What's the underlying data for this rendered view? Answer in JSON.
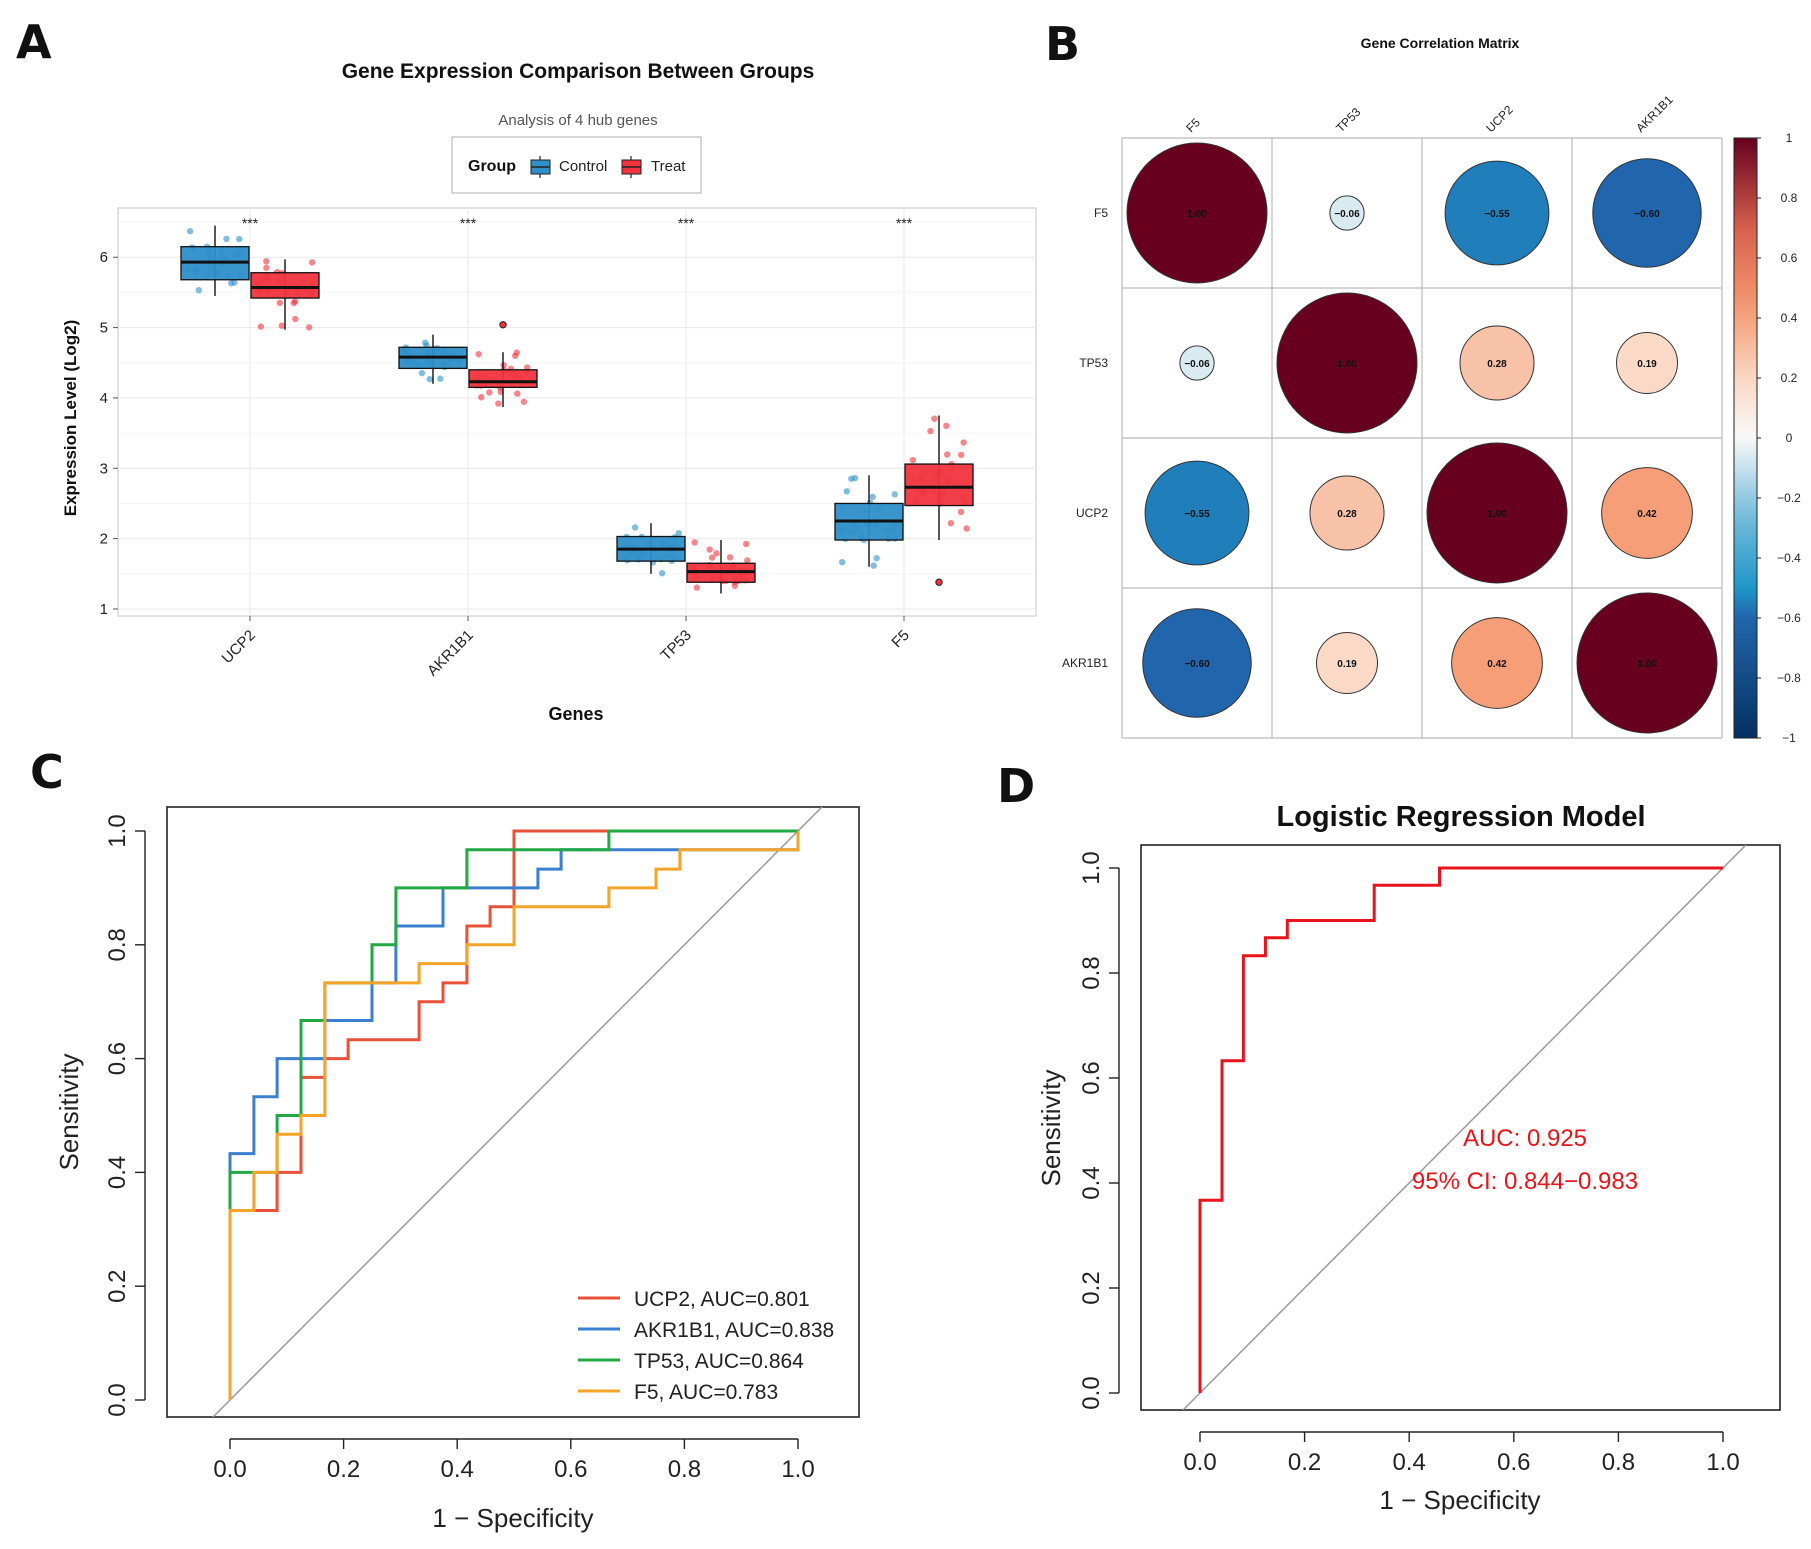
{
  "panels": {
    "A": {
      "letter": "A",
      "chart_data": {
        "type": "box",
        "title": "Gene Expression Comparison Between Groups",
        "subtitle": "Analysis of 4 hub genes",
        "xlabel": "Genes",
        "ylabel": "Expression Level (Log2)",
        "ylim": [
          0.9,
          6.7
        ],
        "yticks": [
          1,
          2,
          3,
          4,
          5,
          6
        ],
        "legend_title": "Group",
        "categories": [
          "UCP2",
          "AKR1B1",
          "TP53",
          "F5"
        ],
        "significance": [
          "***",
          "***",
          "***",
          "***"
        ],
        "series": [
          {
            "name": "Control",
            "color": "#2e8fc9",
            "box": [
              {
                "min": 5.45,
                "q1": 5.68,
                "median": 5.93,
                "q3": 6.15,
                "max": 6.45
              },
              {
                "min": 4.2,
                "q1": 4.42,
                "median": 4.58,
                "q3": 4.72,
                "max": 4.9
              },
              {
                "min": 1.5,
                "q1": 1.68,
                "median": 1.85,
                "q3": 2.03,
                "max": 2.22
              },
              {
                "min": 1.6,
                "q1": 1.98,
                "median": 2.25,
                "q3": 2.5,
                "max": 2.9
              }
            ]
          },
          {
            "name": "Treat",
            "color": "#f0343f",
            "box": [
              {
                "min": 4.97,
                "q1": 5.42,
                "median": 5.57,
                "q3": 5.78,
                "max": 5.97
              },
              {
                "min": 3.87,
                "q1": 4.15,
                "median": 4.23,
                "q3": 4.4,
                "max": 4.65
              },
              {
                "min": 1.22,
                "q1": 1.38,
                "median": 1.53,
                "q3": 1.65,
                "max": 1.98
              },
              {
                "min": 1.98,
                "q1": 2.47,
                "median": 2.73,
                "q3": 3.06,
                "max": 3.75
              }
            ]
          }
        ],
        "outliers": [
          {
            "series": "Treat",
            "category": "AKR1B1",
            "value": 5.04
          },
          {
            "series": "Treat",
            "category": "F5",
            "value": 1.38
          }
        ]
      }
    },
    "B": {
      "letter": "B",
      "chart_data": {
        "type": "heatmap",
        "title": "Gene Correlation Matrix",
        "labels": [
          "F5",
          "TP53",
          "UCP2",
          "AKR1B1"
        ],
        "matrix": [
          [
            1.0,
            -0.06,
            -0.55,
            -0.6
          ],
          [
            -0.06,
            1.0,
            0.28,
            0.19
          ],
          [
            -0.55,
            0.28,
            1.0,
            0.42
          ],
          [
            -0.6,
            0.19,
            0.42,
            1.0
          ]
        ],
        "cell_text": [
          [
            "1.00",
            "−0.06",
            "−0.55",
            "−0.60"
          ],
          [
            "−0.06",
            "1.00",
            "0.28",
            "0.19"
          ],
          [
            "−0.55",
            "0.28",
            "1.00",
            "0.42"
          ],
          [
            "−0.60",
            "0.19",
            "0.42",
            "1.00"
          ]
        ],
        "colorbar_ticks": [
          {
            "v": 1,
            "t": "1"
          },
          {
            "v": 0.8,
            "t": "0.8"
          },
          {
            "v": 0.6,
            "t": "0.6"
          },
          {
            "v": 0.4,
            "t": "0.4"
          },
          {
            "v": 0.2,
            "t": "0.2"
          },
          {
            "v": 0,
            "t": "0"
          },
          {
            "v": -0.2,
            "t": "−0.2"
          },
          {
            "v": -0.4,
            "t": "−0.4"
          },
          {
            "v": -0.6,
            "t": "−0.6"
          },
          {
            "v": -0.8,
            "t": "−0.8"
          },
          {
            "v": -1,
            "t": "−1"
          }
        ]
      }
    },
    "C": {
      "letter": "C",
      "chart_data": {
        "type": "line",
        "xlabel": "1 − Specificity",
        "ylabel": "Sensitivity",
        "xlim": [
          -0.1,
          1.1
        ],
        "ylim": [
          -0.03,
          1.03
        ],
        "xticks": [
          0.0,
          0.2,
          0.4,
          0.6,
          0.8,
          1.0
        ],
        "xtick_labels": [
          "0.0",
          "0.2",
          "0.4",
          "0.6",
          "0.8",
          "1.0"
        ],
        "yticks": [
          0.0,
          0.2,
          0.4,
          0.6,
          0.8,
          1.0
        ],
        "ytick_labels": [
          "0.0",
          "0.2",
          "0.4",
          "0.6",
          "0.8",
          "1.0"
        ],
        "diagonal": true,
        "legend_position": "bottom-right",
        "series": [
          {
            "name": "UCP2, AUC=0.801",
            "color": "#e8513a",
            "points": [
              [
                0,
                0
              ],
              [
                0,
                0.333
              ],
              [
                0.083,
                0.333
              ],
              [
                0.083,
                0.4
              ],
              [
                0.125,
                0.4
              ],
              [
                0.125,
                0.567
              ],
              [
                0.167,
                0.567
              ],
              [
                0.167,
                0.6
              ],
              [
                0.208,
                0.6
              ],
              [
                0.208,
                0.633
              ],
              [
                0.333,
                0.633
              ],
              [
                0.333,
                0.7
              ],
              [
                0.375,
                0.7
              ],
              [
                0.375,
                0.733
              ],
              [
                0.417,
                0.733
              ],
              [
                0.417,
                0.833
              ],
              [
                0.458,
                0.833
              ],
              [
                0.458,
                0.867
              ],
              [
                0.5,
                0.867
              ],
              [
                0.5,
                1
              ],
              [
                1,
                1
              ]
            ]
          },
          {
            "name": "AKR1B1, AUC=0.838",
            "color": "#3b7fd0",
            "points": [
              [
                0,
                0
              ],
              [
                0,
                0.433
              ],
              [
                0.042,
                0.433
              ],
              [
                0.042,
                0.533
              ],
              [
                0.083,
                0.533
              ],
              [
                0.083,
                0.6
              ],
              [
                0.167,
                0.6
              ],
              [
                0.167,
                0.667
              ],
              [
                0.25,
                0.667
              ],
              [
                0.25,
                0.733
              ],
              [
                0.292,
                0.733
              ],
              [
                0.292,
                0.833
              ],
              [
                0.375,
                0.833
              ],
              [
                0.375,
                0.9
              ],
              [
                0.542,
                0.9
              ],
              [
                0.542,
                0.933
              ],
              [
                0.583,
                0.933
              ],
              [
                0.583,
                0.967
              ],
              [
                1,
                0.967
              ],
              [
                1,
                1
              ]
            ]
          },
          {
            "name": "TP53, AUC=0.864",
            "color": "#22a845",
            "points": [
              [
                0,
                0
              ],
              [
                0,
                0.4
              ],
              [
                0.083,
                0.4
              ],
              [
                0.083,
                0.5
              ],
              [
                0.125,
                0.5
              ],
              [
                0.125,
                0.667
              ],
              [
                0.167,
                0.667
              ],
              [
                0.167,
                0.733
              ],
              [
                0.25,
                0.733
              ],
              [
                0.25,
                0.8
              ],
              [
                0.292,
                0.8
              ],
              [
                0.292,
                0.9
              ],
              [
                0.417,
                0.9
              ],
              [
                0.417,
                0.967
              ],
              [
                0.667,
                0.967
              ],
              [
                0.667,
                1
              ],
              [
                1,
                1
              ]
            ]
          },
          {
            "name": "F5, AUC=0.783",
            "color": "#f5a42a",
            "points": [
              [
                0,
                0
              ],
              [
                0,
                0.333
              ],
              [
                0.042,
                0.333
              ],
              [
                0.042,
                0.4
              ],
              [
                0.083,
                0.4
              ],
              [
                0.083,
                0.467
              ],
              [
                0.125,
                0.467
              ],
              [
                0.125,
                0.5
              ],
              [
                0.167,
                0.5
              ],
              [
                0.167,
                0.733
              ],
              [
                0.333,
                0.733
              ],
              [
                0.333,
                0.767
              ],
              [
                0.417,
                0.767
              ],
              [
                0.417,
                0.8
              ],
              [
                0.5,
                0.8
              ],
              [
                0.5,
                0.867
              ],
              [
                0.667,
                0.867
              ],
              [
                0.667,
                0.9
              ],
              [
                0.75,
                0.9
              ],
              [
                0.75,
                0.933
              ],
              [
                0.792,
                0.933
              ],
              [
                0.792,
                0.967
              ],
              [
                1,
                0.967
              ],
              [
                1,
                1
              ]
            ]
          }
        ]
      }
    },
    "D": {
      "letter": "D",
      "chart_data": {
        "type": "line",
        "title": "Logistic Regression Model",
        "xlabel": "1 − Specificity",
        "ylabel": "Sensitivity",
        "xlim": [
          -0.1,
          1.1
        ],
        "ylim": [
          -0.03,
          1.03
        ],
        "xticks": [
          0.0,
          0.2,
          0.4,
          0.6,
          0.8,
          1.0
        ],
        "xtick_labels": [
          "0.0",
          "0.2",
          "0.4",
          "0.6",
          "0.8",
          "1.0"
        ],
        "yticks": [
          0.0,
          0.2,
          0.4,
          0.6,
          0.8,
          1.0
        ],
        "ytick_labels": [
          "0.0",
          "0.2",
          "0.4",
          "0.6",
          "0.8",
          "1.0"
        ],
        "diagonal": true,
        "annotations": [
          "AUC: 0.925",
          "95% CI: 0.844−0.983"
        ],
        "series": [
          {
            "name": "Logistic Regression Model",
            "color": "#e8141c",
            "points": [
              [
                0,
                0
              ],
              [
                0,
                0.367
              ],
              [
                0.042,
                0.367
              ],
              [
                0.042,
                0.633
              ],
              [
                0.083,
                0.633
              ],
              [
                0.083,
                0.833
              ],
              [
                0.125,
                0.833
              ],
              [
                0.125,
                0.867
              ],
              [
                0.167,
                0.867
              ],
              [
                0.167,
                0.9
              ],
              [
                0.333,
                0.9
              ],
              [
                0.333,
                0.967
              ],
              [
                0.458,
                0.967
              ],
              [
                0.458,
                1
              ],
              [
                1,
                1
              ]
            ]
          }
        ]
      }
    }
  }
}
